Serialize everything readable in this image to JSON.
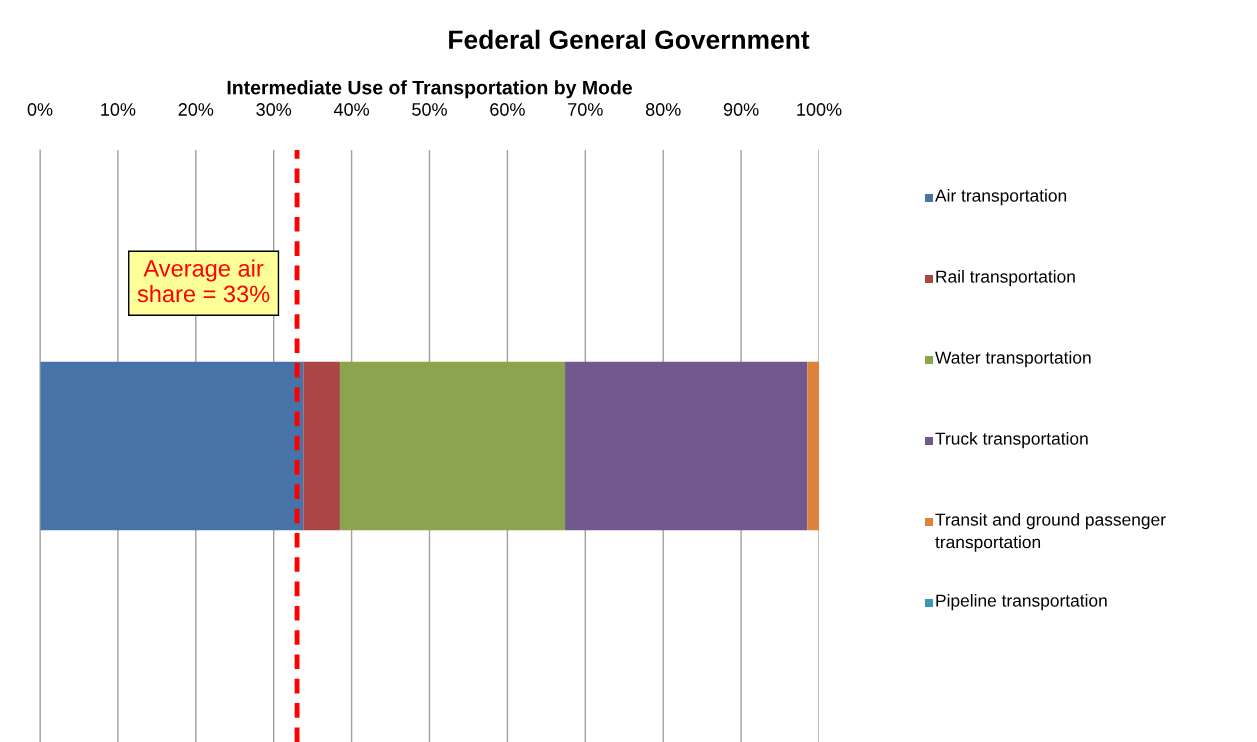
{
  "chart_data": {
    "type": "bar",
    "orientation": "horizontal",
    "stacked": true,
    "title": "Federal General Government",
    "xlabel": "Intermediate Use of Transportation by Mode",
    "categories": [
      null
    ],
    "series": [
      {
        "name": "Air transportation",
        "color": "#4674a8",
        "values": [
          33.8
        ]
      },
      {
        "name": "Rail transportation",
        "color": "#aa4744",
        "values": [
          4.7
        ]
      },
      {
        "name": "Water transportation",
        "color": "#8aa54e",
        "values": [
          28.9
        ]
      },
      {
        "name": "Truck transportation",
        "color": "#71598e",
        "values": [
          31.1
        ]
      },
      {
        "name": "Transit and ground passenger transportation",
        "color": "#dc823b",
        "values": [
          1.5
        ]
      },
      {
        "name": "Pipeline transportation",
        "color": "#3e97af",
        "values": [
          0
        ]
      }
    ],
    "xlim": [
      0,
      100
    ],
    "xticks": [
      {
        "value": 0,
        "label": "0%"
      },
      {
        "value": 10,
        "label": "10%"
      },
      {
        "value": 20,
        "label": "20%"
      },
      {
        "value": 30,
        "label": "30%"
      },
      {
        "value": 40,
        "label": "40%"
      },
      {
        "value": 50,
        "label": "50%"
      },
      {
        "value": 60,
        "label": "60%"
      },
      {
        "value": 70,
        "label": "70%"
      },
      {
        "value": 80,
        "label": "80%"
      },
      {
        "value": 90,
        "label": "90%"
      },
      {
        "value": 100,
        "label": "100%"
      }
    ],
    "ref_lines": [
      {
        "axis": "x",
        "value": 33,
        "label": "Average air\nshare = 33%",
        "color": "#ff0000",
        "line_style": "dashed"
      }
    ],
    "grid": "x",
    "legend": "right"
  }
}
